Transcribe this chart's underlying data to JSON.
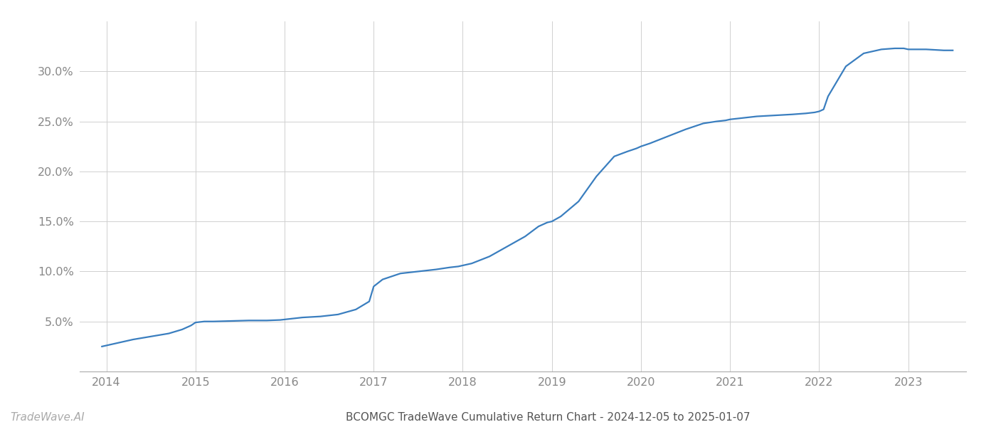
{
  "title": "BCOMGC TradeWave Cumulative Return Chart - 2024-12-05 to 2025-01-07",
  "watermark": "TradeWave.AI",
  "line_color": "#3a7ebf",
  "background_color": "#ffffff",
  "grid_color": "#d0d0d0",
  "x_years": [
    2014,
    2015,
    2016,
    2017,
    2018,
    2019,
    2020,
    2021,
    2022,
    2023
  ],
  "x_data": [
    2013.95,
    2014.1,
    2014.3,
    2014.5,
    2014.7,
    2014.85,
    2014.95,
    2015.0,
    2015.1,
    2015.2,
    2015.4,
    2015.6,
    2015.8,
    2015.95,
    2016.0,
    2016.1,
    2016.2,
    2016.4,
    2016.6,
    2016.8,
    2016.95,
    2017.0,
    2017.1,
    2017.3,
    2017.5,
    2017.7,
    2017.85,
    2017.95,
    2018.0,
    2018.1,
    2018.3,
    2018.5,
    2018.7,
    2018.85,
    2018.95,
    2019.0,
    2019.1,
    2019.3,
    2019.5,
    2019.7,
    2019.85,
    2019.95,
    2020.0,
    2020.1,
    2020.3,
    2020.5,
    2020.7,
    2020.85,
    2020.95,
    2021.0,
    2021.1,
    2021.3,
    2021.5,
    2021.7,
    2021.85,
    2021.95,
    2022.0,
    2022.05,
    2022.1,
    2022.2,
    2022.3,
    2022.5,
    2022.7,
    2022.85,
    2022.95,
    2023.0,
    2023.2,
    2023.4,
    2023.5
  ],
  "y_data": [
    2.5,
    2.8,
    3.2,
    3.5,
    3.8,
    4.2,
    4.6,
    4.9,
    5.0,
    5.0,
    5.05,
    5.1,
    5.1,
    5.15,
    5.2,
    5.3,
    5.4,
    5.5,
    5.7,
    6.2,
    7.0,
    8.5,
    9.2,
    9.8,
    10.0,
    10.2,
    10.4,
    10.5,
    10.6,
    10.8,
    11.5,
    12.5,
    13.5,
    14.5,
    14.9,
    15.0,
    15.5,
    17.0,
    19.5,
    21.5,
    22.0,
    22.3,
    22.5,
    22.8,
    23.5,
    24.2,
    24.8,
    25.0,
    25.1,
    25.2,
    25.3,
    25.5,
    25.6,
    25.7,
    25.8,
    25.9,
    26.0,
    26.2,
    27.5,
    29.0,
    30.5,
    31.8,
    32.2,
    32.3,
    32.3,
    32.2,
    32.2,
    32.1,
    32.1
  ],
  "ylim": [
    0,
    35
  ],
  "yticks": [
    5.0,
    10.0,
    15.0,
    20.0,
    25.0,
    30.0
  ],
  "xlim": [
    2013.7,
    2023.65
  ],
  "line_width": 1.6,
  "title_fontsize": 11,
  "watermark_fontsize": 11,
  "tick_fontsize": 11.5,
  "tick_color": "#888888",
  "axis_color": "#aaaaaa",
  "title_color": "#555555",
  "watermark_color": "#aaaaaa"
}
